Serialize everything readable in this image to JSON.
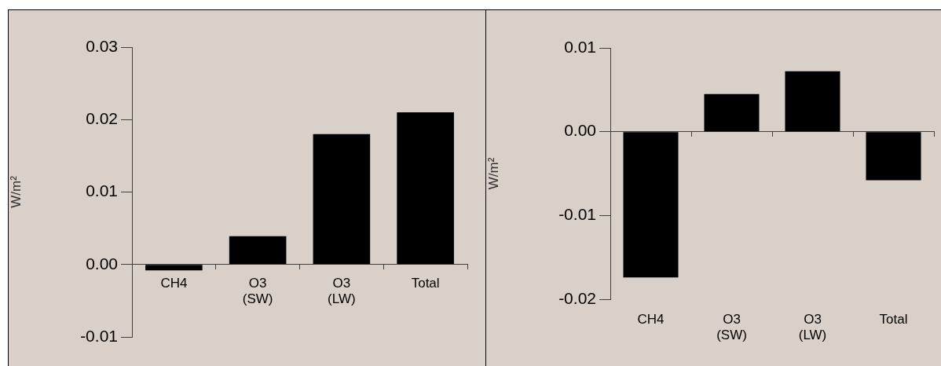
{
  "chart_data": [
    {
      "type": "bar",
      "categories": [
        "CH4",
        "O3\n(SW)",
        "O3\n(LW)",
        "Total"
      ],
      "values": [
        -0.0008,
        0.0039,
        0.018,
        0.021
      ],
      "color": "#000000",
      "ylabel": "W/m²",
      "ylim": [
        -0.01,
        0.03
      ],
      "yticks": [
        -0.01,
        {
          "value": 0,
          "label": "0.00"
        },
        0.01,
        0.02,
        0.03
      ],
      "grid": false,
      "legend": false
    },
    {
      "type": "bar",
      "categories": [
        "CH4",
        "O3\n(SW)",
        "O3\n(LW)",
        "Total"
      ],
      "values": [
        -0.0174,
        0.0045,
        0.0072,
        -0.0058
      ],
      "color": "#000000",
      "ylabel": "W/m²",
      "ylim": [
        -0.02,
        0.01
      ],
      "yticks": [
        -0.02,
        -0.01,
        {
          "value": 0,
          "label": "0.00"
        },
        0.01
      ],
      "legend": false
    }
  ]
}
